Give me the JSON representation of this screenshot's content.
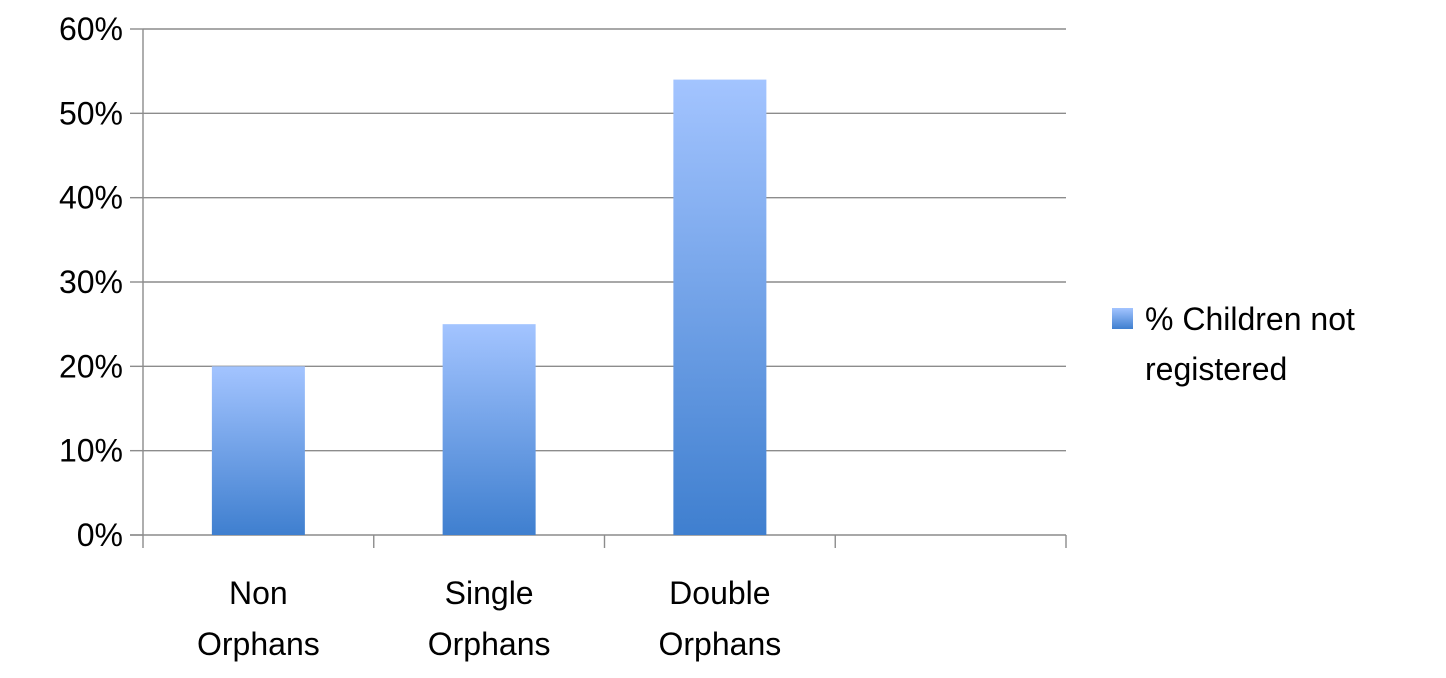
{
  "chart_data": {
    "type": "bar",
    "categories": [
      [
        "Non",
        "Orphans"
      ],
      [
        "Single",
        "Orphans"
      ],
      [
        "Double",
        "Orphans"
      ],
      [
        ""
      ]
    ],
    "series": [
      {
        "name": "% Children not registered",
        "values": [
          20,
          25,
          54,
          null
        ]
      }
    ],
    "ylim": [
      0,
      60
    ],
    "yticks": [
      "0%",
      "10%",
      "20%",
      "30%",
      "40%",
      "50%",
      "60%"
    ],
    "ytick_values": [
      0,
      10,
      20,
      30,
      40,
      50,
      60
    ],
    "grid": true,
    "legend_position": "right",
    "legend_lines": [
      "% Children not",
      "registered"
    ],
    "colors": {
      "bar_top": "#a3c4ff",
      "bar_bottom": "#3f7fcf",
      "grid": "#8c8c8c",
      "axis": "#8c8c8c"
    }
  }
}
